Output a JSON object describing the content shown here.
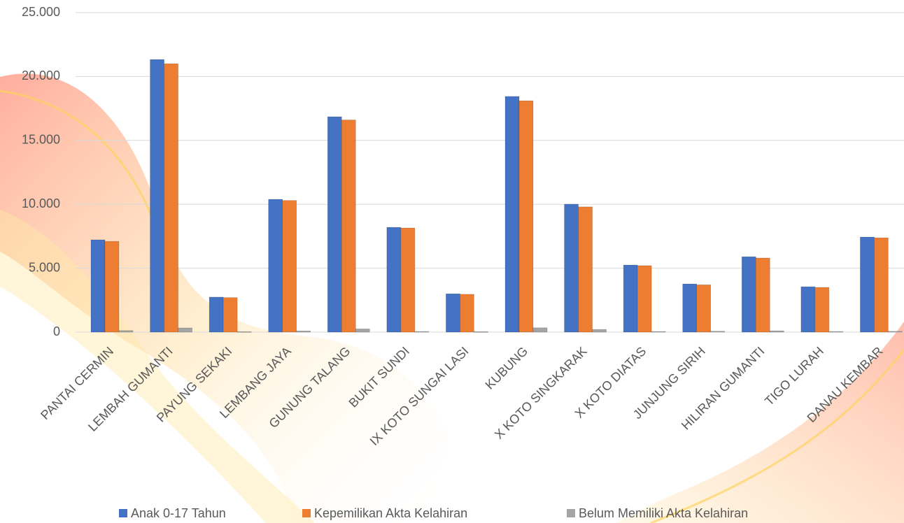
{
  "chart_data": {
    "type": "bar",
    "categories": [
      "PANTAI CERMIN",
      "LEMBAH GUMANTI",
      "PAYUNG SEKAKI",
      "LEMBANG JAYA",
      "GUNUNG TALANG",
      "BUKIT SUNDI",
      "IX KOTO SUNGAI LASI",
      "KUBUNG",
      "X KOTO SINGKARAK",
      "X KOTO DIATAS",
      "JUNJUNG SIRIH",
      "HILIRAN GUMANTI",
      "TIGO LURAH",
      "DANAU KEMBAR"
    ],
    "series": [
      {
        "name": "Anak 0-17 Tahun",
        "color": "#4472c4",
        "values": [
          7220,
          21330,
          2740,
          10390,
          16850,
          8200,
          3000,
          18440,
          10010,
          5250,
          3770,
          5900,
          3550,
          7440
        ]
      },
      {
        "name": "Kepemilikan Akta Kelahiran",
        "color": "#ed7d31",
        "values": [
          7100,
          21000,
          2700,
          10300,
          16600,
          8150,
          2960,
          18100,
          9800,
          5200,
          3700,
          5800,
          3500,
          7380
        ]
      },
      {
        "name": "Belum Memiliki Akta Kelahiran",
        "color": "#a5a5a5",
        "values": [
          120,
          330,
          40,
          90,
          250,
          50,
          40,
          340,
          210,
          50,
          70,
          100,
          50,
          60
        ]
      }
    ],
    "ylim": [
      0,
      25000
    ],
    "yticks": [
      {
        "value": 0,
        "label": "0"
      },
      {
        "value": 5000,
        "label": "5.000"
      },
      {
        "value": 10000,
        "label": "10.000"
      },
      {
        "value": 15000,
        "label": "15.000"
      },
      {
        "value": 20000,
        "label": "20.000"
      },
      {
        "value": 25000,
        "label": "25.000"
      }
    ],
    "grid": true
  }
}
